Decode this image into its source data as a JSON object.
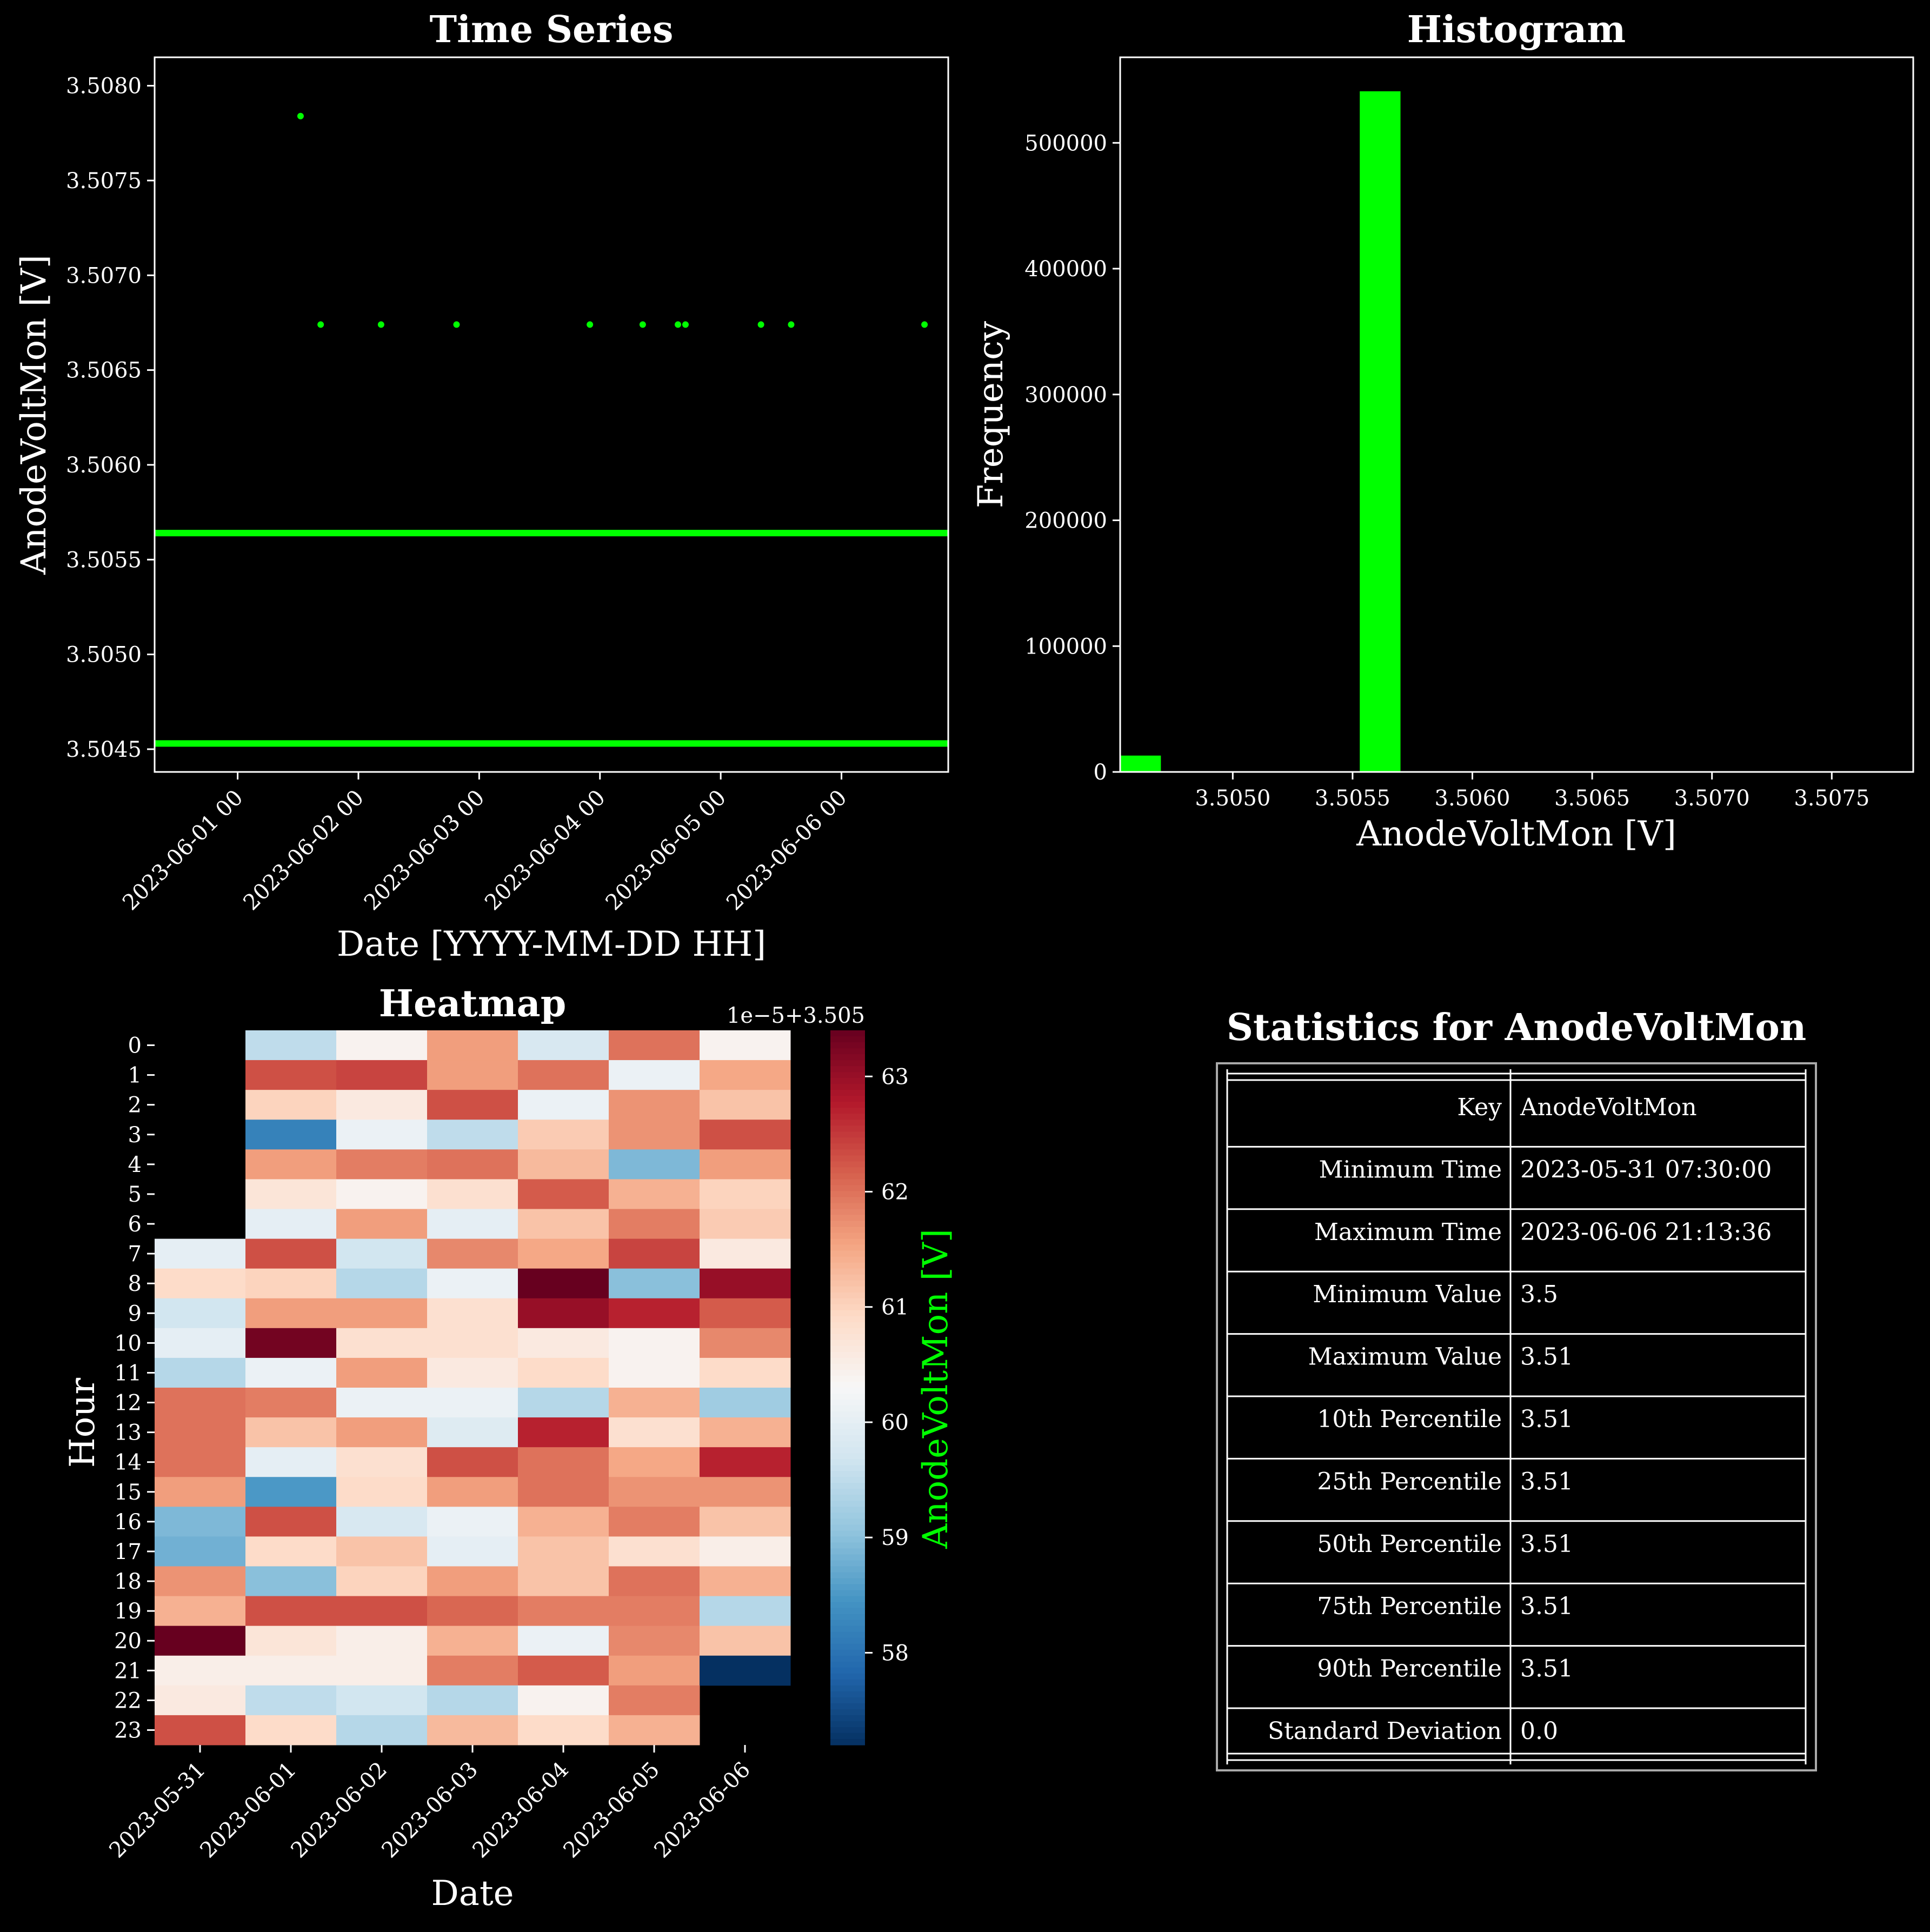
{
  "colors": {
    "background": "#000000",
    "series": "#00ff00",
    "text": "#ffffff",
    "colorbar_label": "#00ff00"
  },
  "chart_data": [
    {
      "type": "scatter",
      "title": "Time Series",
      "xlabel": "Date [YYYY-MM-DD HH]",
      "ylabel": "AnodeVoltMon [V]",
      "xlim": [
        "2023-05-31 07:30",
        "2023-06-06 21:13"
      ],
      "ylim": [
        3.50438,
        3.50815
      ],
      "x_tick_labels": [
        "2023-06-01 00",
        "2023-06-02 00",
        "2023-06-03 00",
        "2023-06-04 00",
        "2023-06-05 00",
        "2023-06-06 00"
      ],
      "y_tick_labels": [
        "3.5045",
        "3.5050",
        "3.5055",
        "3.5060",
        "3.5065",
        "3.5070",
        "3.5075",
        "3.5080"
      ],
      "levels": [
        {
          "y": 3.50453,
          "from": "2023-05-31 07:30",
          "to": "2023-06-06 21:13"
        },
        {
          "y": 3.50564,
          "from": "2023-05-31 07:30",
          "to": "2023-06-06 21:13"
        }
      ],
      "points": [
        {
          "x": "2023-06-01 12:30",
          "y": 3.50784
        },
        {
          "x": "2023-06-01 16:30",
          "y": 3.50674
        },
        {
          "x": "2023-06-02 04:30",
          "y": 3.50674
        },
        {
          "x": "2023-06-02 19:30",
          "y": 3.50674
        },
        {
          "x": "2023-06-03 22:00",
          "y": 3.50674
        },
        {
          "x": "2023-06-04 08:30",
          "y": 3.50674
        },
        {
          "x": "2023-06-04 15:30",
          "y": 3.50674
        },
        {
          "x": "2023-06-04 17:00",
          "y": 3.50674
        },
        {
          "x": "2023-06-05 08:00",
          "y": 3.50674
        },
        {
          "x": "2023-06-05 14:00",
          "y": 3.50674
        },
        {
          "x": "2023-06-06 16:30",
          "y": 3.50674
        }
      ]
    },
    {
      "type": "bar",
      "title": "Histogram",
      "xlabel": "AnodeVoltMon [V]",
      "ylabel": "Frequency",
      "xlim": [
        3.50453,
        3.50784
      ],
      "ylim": [
        0,
        568000
      ],
      "x_tick_labels": [
        "3.5050",
        "3.5055",
        "3.5060",
        "3.5065",
        "3.5070",
        "3.5075"
      ],
      "y_tick_labels": [
        "0",
        "100000",
        "200000",
        "300000",
        "400000",
        "500000"
      ],
      "bins": [
        {
          "from": 3.50453,
          "to": 3.5047,
          "count": 13000
        },
        {
          "from": 3.50553,
          "to": 3.5057,
          "count": 541000
        }
      ]
    },
    {
      "type": "heatmap",
      "title": "Heatmap",
      "xlabel": "Date",
      "ylabel": "Hour",
      "colorbar_label": "AnodeVoltMon [V]",
      "colorbar_offset": "1e−5+3.505",
      "colorbar_ticks": [
        "58",
        "59",
        "60",
        "61",
        "62",
        "63"
      ],
      "colorbar_range": [
        57.2,
        63.4
      ],
      "dates": [
        "2023-05-31",
        "2023-06-01",
        "2023-06-02",
        "2023-06-03",
        "2023-06-04",
        "2023-06-05",
        "2023-06-06"
      ],
      "hours": [
        "0",
        "1",
        "2",
        "3",
        "4",
        "5",
        "6",
        "7",
        "8",
        "9",
        "10",
        "11",
        "12",
        "13",
        "14",
        "15",
        "16",
        "17",
        "18",
        "19",
        "20",
        "21",
        "22",
        "23"
      ],
      "values": [
        [
          null,
          59.5,
          60.4,
          61.6,
          59.8,
          62.0,
          60.4
        ],
        [
          null,
          62.3,
          62.4,
          61.6,
          62.0,
          60.1,
          61.5
        ],
        [
          null,
          61.0,
          60.6,
          62.3,
          60.1,
          61.7,
          61.2
        ],
        [
          null,
          58.2,
          60.1,
          59.5,
          61.1,
          61.7,
          62.3
        ],
        [
          null,
          61.6,
          61.9,
          62.0,
          61.3,
          58.9,
          61.6
        ],
        [
          null,
          60.7,
          60.4,
          60.8,
          62.2,
          61.4,
          61.0
        ],
        [
          null,
          60.0,
          61.6,
          60.0,
          61.2,
          61.9,
          61.1
        ],
        [
          60.0,
          62.3,
          59.7,
          61.8,
          61.5,
          62.4,
          60.6
        ],
        [
          60.9,
          61.0,
          59.4,
          60.1,
          63.4,
          59.0,
          63.0
        ],
        [
          59.7,
          61.6,
          61.6,
          60.8,
          63.0,
          62.7,
          62.2
        ],
        [
          60.0,
          63.3,
          60.8,
          60.8,
          60.6,
          60.4,
          61.8
        ],
        [
          59.4,
          60.1,
          61.6,
          60.6,
          60.9,
          60.4,
          60.9
        ],
        [
          62.0,
          61.9,
          60.1,
          60.1,
          59.4,
          61.4,
          59.2
        ],
        [
          62.0,
          61.2,
          61.6,
          59.9,
          62.7,
          60.8,
          61.4
        ],
        [
          62.0,
          60.0,
          60.8,
          62.3,
          62.0,
          61.5,
          62.7
        ],
        [
          61.6,
          58.5,
          60.9,
          61.6,
          62.0,
          61.7,
          61.7
        ],
        [
          58.9,
          62.3,
          59.8,
          60.1,
          61.4,
          61.9,
          61.2
        ],
        [
          58.8,
          60.9,
          61.2,
          60.0,
          61.2,
          60.8,
          60.5
        ],
        [
          61.7,
          59.0,
          61.0,
          61.6,
          61.2,
          62.0,
          61.4
        ],
        [
          61.4,
          62.3,
          62.3,
          62.1,
          61.9,
          61.9,
          59.4
        ],
        [
          63.4,
          60.7,
          60.5,
          61.4,
          60.1,
          61.8,
          61.2
        ],
        [
          60.5,
          60.5,
          60.5,
          61.9,
          62.2,
          61.6,
          57.2
        ],
        [
          60.6,
          59.5,
          59.7,
          59.4,
          60.4,
          61.9,
          null
        ],
        [
          62.3,
          60.9,
          59.4,
          61.3,
          60.9,
          61.4,
          null
        ]
      ]
    },
    {
      "type": "table",
      "title": "Statistics for AnodeVoltMon",
      "rows": [
        [
          "Key",
          "AnodeVoltMon"
        ],
        [
          "Minimum Time",
          "2023-05-31 07:30:00"
        ],
        [
          "Maximum Time",
          "2023-06-06 21:13:36"
        ],
        [
          "Minimum Value",
          "3.5"
        ],
        [
          "Maximum Value",
          "3.51"
        ],
        [
          "10th Percentile",
          "3.51"
        ],
        [
          "25th Percentile",
          "3.51"
        ],
        [
          "50th Percentile",
          "3.51"
        ],
        [
          "75th Percentile",
          "3.51"
        ],
        [
          "90th Percentile",
          "3.51"
        ],
        [
          "Standard Deviation",
          "0.0"
        ]
      ]
    }
  ]
}
